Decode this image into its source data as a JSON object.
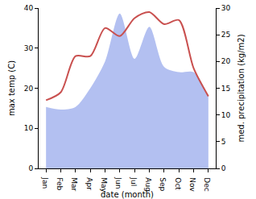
{
  "chart_data": {
    "type": "line",
    "xlabel": "date (month)",
    "ylabel": "max temp (C)",
    "y2label": "med. precipitation (kg/m2)",
    "categories": [
      "Jan",
      "Feb",
      "Mar",
      "Apr",
      "May",
      "Jun",
      "Jul",
      "Aug",
      "Sep",
      "Oct",
      "Nov",
      "Dec"
    ],
    "series": [
      {
        "name": "med. precipitation (kg/m2)",
        "type": "area",
        "axis": "y2",
        "color": "#b3c0f1",
        "values": [
          11.5,
          11,
          11.5,
          15,
          20,
          29,
          20.5,
          26.5,
          19,
          18,
          18,
          13.5
        ]
      },
      {
        "name": "max temp (C)",
        "type": "line",
        "color": "#c9504f",
        "line_style": "smooth",
        "values": [
          17,
          19,
          28,
          28,
          35,
          33,
          37.5,
          39,
          36,
          37,
          25,
          18
        ]
      }
    ],
    "ylim": [
      0,
      40
    ],
    "yticks": [
      0,
      10,
      20,
      30,
      40
    ],
    "y2lim": [
      0,
      30
    ],
    "y2ticks": [
      0,
      5,
      10,
      15,
      20,
      25,
      30
    ],
    "grid": false
  }
}
